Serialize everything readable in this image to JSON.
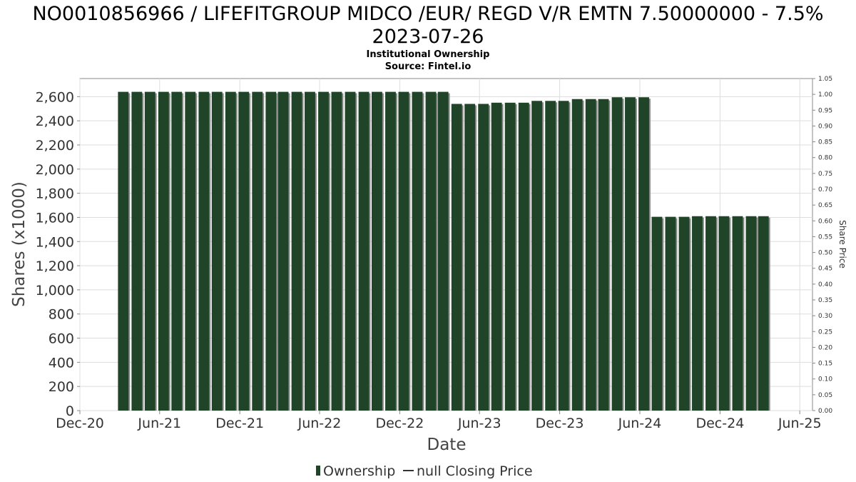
{
  "chart": {
    "title_line1": "NO0010856966 / LIFEFITGROUP MIDCO /EUR/ REGD V/R EMTN 7.50000000 - 7.5%",
    "title_line2": "2023-07-26",
    "subtitle": "Institutional Ownership",
    "source": "Source: Fintel.io",
    "legend_ownership": "Ownership",
    "legend_price": "null Closing Price"
  },
  "colors": {
    "bar": "#1f4428",
    "bar_shadow": "#8a8a8a",
    "grid": "#dddddd",
    "axis": "#888888"
  },
  "chart_data": {
    "type": "bar",
    "xlabel": "Date",
    "ylabel": "Shares (x1000)",
    "y2label": "Share Price",
    "ylim": [
      0,
      2750
    ],
    "y2lim": [
      0,
      1.05
    ],
    "yticks": [
      0,
      200,
      400,
      600,
      800,
      1000,
      1200,
      1400,
      1600,
      1800,
      2000,
      2200,
      2400,
      2600
    ],
    "ytick_labels": [
      "0",
      "200",
      "400",
      "600",
      "800",
      "1,000",
      "1,200",
      "1,400",
      "1,600",
      "1,800",
      "2,000",
      "2,200",
      "2,400",
      "2,600"
    ],
    "y2ticks": [
      "0.00",
      "0.05",
      "0.10",
      "0.15",
      "0.20",
      "0.25",
      "0.30",
      "0.35",
      "0.40",
      "0.45",
      "0.50",
      "0.55",
      "0.60",
      "0.65",
      "0.70",
      "0.75",
      "0.80",
      "0.85",
      "0.90",
      "0.95",
      "1.00",
      "1.05"
    ],
    "xlim": [
      "2020-12-01",
      "2025-06-30"
    ],
    "xticks": [
      {
        "label": "Dec-20",
        "date": "2020-12-01"
      },
      {
        "label": "Jun-21",
        "date": "2021-06-01"
      },
      {
        "label": "Dec-21",
        "date": "2021-12-01"
      },
      {
        "label": "Jun-22",
        "date": "2022-06-01"
      },
      {
        "label": "Dec-22",
        "date": "2022-12-01"
      },
      {
        "label": "Jun-23",
        "date": "2023-06-01"
      },
      {
        "label": "Dec-23",
        "date": "2023-12-01"
      },
      {
        "label": "Jun-24",
        "date": "2024-06-01"
      },
      {
        "label": "Dec-24",
        "date": "2024-12-01"
      },
      {
        "label": "Jun-25",
        "date": "2025-06-01"
      }
    ],
    "grid": true,
    "legend_position": "bottom",
    "series": [
      {
        "name": "Ownership",
        "points": [
          {
            "date": "2021-03-10",
            "value": 2640
          },
          {
            "date": "2021-04-10",
            "value": 2640
          },
          {
            "date": "2021-05-10",
            "value": 2640
          },
          {
            "date": "2021-06-10",
            "value": 2640
          },
          {
            "date": "2021-07-10",
            "value": 2640
          },
          {
            "date": "2021-08-10",
            "value": 2640
          },
          {
            "date": "2021-09-10",
            "value": 2640
          },
          {
            "date": "2021-10-10",
            "value": 2640
          },
          {
            "date": "2021-11-10",
            "value": 2640
          },
          {
            "date": "2021-12-10",
            "value": 2640
          },
          {
            "date": "2022-01-10",
            "value": 2640
          },
          {
            "date": "2022-02-10",
            "value": 2640
          },
          {
            "date": "2022-03-10",
            "value": 2640
          },
          {
            "date": "2022-04-10",
            "value": 2640
          },
          {
            "date": "2022-05-10",
            "value": 2640
          },
          {
            "date": "2022-06-10",
            "value": 2640
          },
          {
            "date": "2022-07-10",
            "value": 2640
          },
          {
            "date": "2022-08-10",
            "value": 2640
          },
          {
            "date": "2022-09-10",
            "value": 2640
          },
          {
            "date": "2022-10-10",
            "value": 2640
          },
          {
            "date": "2022-11-10",
            "value": 2640
          },
          {
            "date": "2022-12-10",
            "value": 2640
          },
          {
            "date": "2023-01-10",
            "value": 2640
          },
          {
            "date": "2023-02-10",
            "value": 2640
          },
          {
            "date": "2023-03-10",
            "value": 2640
          },
          {
            "date": "2023-04-10",
            "value": 2540
          },
          {
            "date": "2023-05-10",
            "value": 2540
          },
          {
            "date": "2023-06-10",
            "value": 2540
          },
          {
            "date": "2023-07-10",
            "value": 2550
          },
          {
            "date": "2023-08-10",
            "value": 2550
          },
          {
            "date": "2023-09-10",
            "value": 2550
          },
          {
            "date": "2023-10-10",
            "value": 2565
          },
          {
            "date": "2023-11-10",
            "value": 2565
          },
          {
            "date": "2023-12-10",
            "value": 2565
          },
          {
            "date": "2024-01-10",
            "value": 2580
          },
          {
            "date": "2024-02-10",
            "value": 2580
          },
          {
            "date": "2024-03-10",
            "value": 2580
          },
          {
            "date": "2024-04-10",
            "value": 2595
          },
          {
            "date": "2024-05-10",
            "value": 2595
          },
          {
            "date": "2024-06-10",
            "value": 2595
          },
          {
            "date": "2024-07-10",
            "value": 1605
          },
          {
            "date": "2024-08-10",
            "value": 1605
          },
          {
            "date": "2024-09-10",
            "value": 1605
          },
          {
            "date": "2024-10-10",
            "value": 1610
          },
          {
            "date": "2024-11-10",
            "value": 1610
          },
          {
            "date": "2024-12-10",
            "value": 1610
          },
          {
            "date": "2025-01-10",
            "value": 1610
          },
          {
            "date": "2025-02-10",
            "value": 1610
          },
          {
            "date": "2025-03-10",
            "value": 1610
          }
        ]
      }
    ]
  }
}
